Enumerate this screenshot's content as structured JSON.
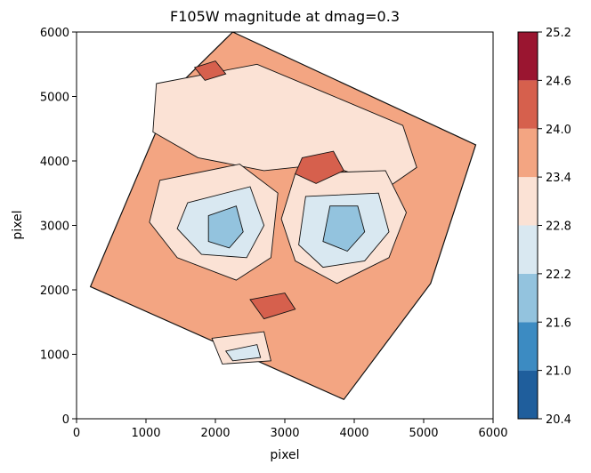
{
  "chart_data": {
    "type": "contour",
    "title": "F105W magnitude at dmag=0.3",
    "xlabel": "pixel",
    "ylabel": "pixel",
    "xlim": [
      0,
      6000
    ],
    "ylim": [
      0,
      6000
    ],
    "xticks": [
      0,
      1000,
      2000,
      3000,
      4000,
      5000,
      6000
    ],
    "yticks": [
      0,
      1000,
      2000,
      3000,
      4000,
      5000,
      6000
    ],
    "footprint": [
      [
        2250,
        6000
      ],
      [
        5750,
        4250
      ],
      [
        5100,
        2100
      ],
      [
        3850,
        300
      ],
      [
        200,
        2050
      ],
      [
        1400,
        5100
      ]
    ],
    "colorbar": {
      "levels": [
        20.4,
        21.0,
        21.6,
        22.2,
        22.8,
        23.4,
        24.0,
        24.6,
        25.2
      ],
      "colors": [
        "#1f5e9c",
        "#3c8bc2",
        "#93c3de",
        "#d9e8f1",
        "#fbe2d5",
        "#f3a582",
        "#d6604d",
        "#9a1530"
      ]
    },
    "background_level_color": "#f3a582",
    "regions": [
      {
        "level_index": 4,
        "polygon": [
          [
            1150,
            5200
          ],
          [
            2600,
            5500
          ],
          [
            3600,
            5050
          ],
          [
            4700,
            4550
          ],
          [
            4900,
            3900
          ],
          [
            4500,
            3600
          ],
          [
            3600,
            3950
          ],
          [
            2700,
            3850
          ],
          [
            1750,
            4050
          ],
          [
            1100,
            4450
          ]
        ]
      },
      {
        "level_index": 4,
        "polygon": [
          [
            1200,
            3700
          ],
          [
            2350,
            3950
          ],
          [
            2900,
            3500
          ],
          [
            2800,
            2500
          ],
          [
            2300,
            2150
          ],
          [
            1450,
            2500
          ],
          [
            1050,
            3050
          ]
        ]
      },
      {
        "level_index": 4,
        "polygon": [
          [
            3150,
            3800
          ],
          [
            4450,
            3850
          ],
          [
            4750,
            3200
          ],
          [
            4500,
            2500
          ],
          [
            3750,
            2100
          ],
          [
            3150,
            2450
          ],
          [
            2950,
            3100
          ]
        ]
      },
      {
        "level_index": 4,
        "polygon": [
          [
            1950,
            1250
          ],
          [
            2700,
            1350
          ],
          [
            2800,
            900
          ],
          [
            2100,
            850
          ]
        ]
      },
      {
        "level_index": 3,
        "polygon": [
          [
            1600,
            3350
          ],
          [
            2500,
            3600
          ],
          [
            2700,
            3000
          ],
          [
            2450,
            2500
          ],
          [
            1800,
            2550
          ],
          [
            1450,
            2950
          ]
        ]
      },
      {
        "level_index": 3,
        "polygon": [
          [
            3300,
            3450
          ],
          [
            4350,
            3500
          ],
          [
            4500,
            2900
          ],
          [
            4150,
            2450
          ],
          [
            3550,
            2350
          ],
          [
            3200,
            2700
          ]
        ]
      },
      {
        "level_index": 3,
        "polygon": [
          [
            2150,
            1050
          ],
          [
            2600,
            1150
          ],
          [
            2650,
            950
          ],
          [
            2250,
            900
          ]
        ]
      },
      {
        "level_index": 2,
        "polygon": [
          [
            1900,
            3150
          ],
          [
            2300,
            3300
          ],
          [
            2400,
            2900
          ],
          [
            2200,
            2650
          ],
          [
            1900,
            2750
          ]
        ]
      },
      {
        "level_index": 2,
        "polygon": [
          [
            3650,
            3300
          ],
          [
            4050,
            3300
          ],
          [
            4150,
            2900
          ],
          [
            3900,
            2600
          ],
          [
            3550,
            2750
          ]
        ]
      },
      {
        "level_index": 6,
        "polygon": [
          [
            3250,
            4050
          ],
          [
            3700,
            4150
          ],
          [
            3850,
            3850
          ],
          [
            3450,
            3650
          ],
          [
            3150,
            3800
          ]
        ]
      },
      {
        "level_index": 6,
        "polygon": [
          [
            2500,
            1850
          ],
          [
            3000,
            1950
          ],
          [
            3150,
            1700
          ],
          [
            2700,
            1550
          ]
        ]
      },
      {
        "level_index": 6,
        "polygon": [
          [
            1700,
            5450
          ],
          [
            2000,
            5550
          ],
          [
            2150,
            5350
          ],
          [
            1850,
            5250
          ]
        ]
      }
    ]
  }
}
